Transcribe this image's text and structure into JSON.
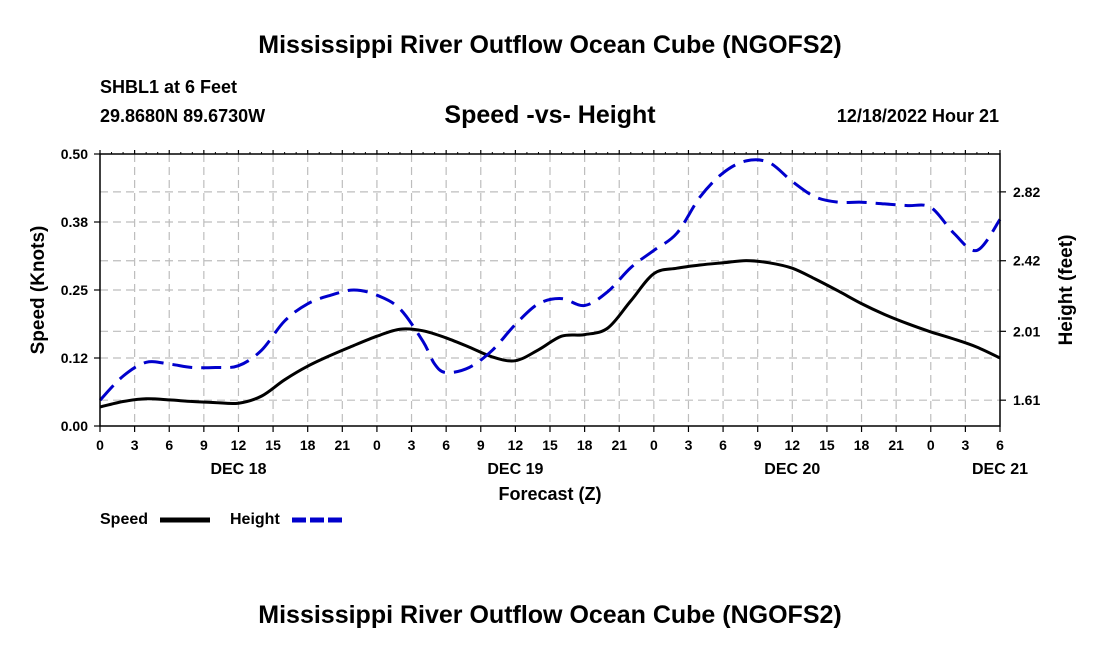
{
  "page_title": "Mississippi River Outflow Ocean Cube (NGOFS2)",
  "footer_title": "Mississippi River Outflow Ocean Cube (NGOFS2)",
  "station": {
    "name_depth": "SHBL1 at 6 Feet",
    "coords": "29.8680N  89.6730W",
    "datetime": "12/18/2022 Hour 21"
  },
  "chart_data": {
    "type": "line",
    "title": "Speed -vs- Height",
    "xlabel": "Forecast (Z)",
    "ylabel_left": "Speed (Knots)",
    "ylabel_right": "Height (feet)",
    "x_unit": "hours since 12/18 00Z",
    "xlim": [
      0,
      78
    ],
    "ylim_left": [
      0,
      0.5
    ],
    "ylim_right": [
      1.46,
      3.04
    ],
    "y_ticks_left": [
      "0.00",
      "0.12",
      "0.25",
      "0.38",
      "0.50"
    ],
    "y_ticks_left_values": [
      0,
      0.125,
      0.25,
      0.375,
      0.5
    ],
    "y_ticks_right": [
      "1.61",
      "2.01",
      "2.42",
      "2.82"
    ],
    "y_ticks_right_values": [
      1.61,
      2.01,
      2.42,
      2.82
    ],
    "x_tick_labels": [
      "0",
      "3",
      "6",
      "9",
      "12",
      "15",
      "18",
      "21",
      "0",
      "3",
      "6",
      "9",
      "12",
      "15",
      "18",
      "21",
      "0",
      "3",
      "6",
      "9",
      "12",
      "15",
      "18",
      "21",
      "0",
      "3",
      "6"
    ],
    "day_labels": [
      {
        "label": "DEC 18",
        "hour": 12
      },
      {
        "label": "DEC 19",
        "hour": 36
      },
      {
        "label": "DEC 20",
        "hour": 60
      },
      {
        "label": "DEC 21",
        "hour": 78
      }
    ],
    "grid": true,
    "series": [
      {
        "name": "Speed",
        "axis": "left",
        "color": "#000000",
        "dash": "solid",
        "x": [
          0,
          2,
          4,
          6,
          8,
          10,
          12,
          14,
          16,
          18,
          20,
          22,
          24,
          26,
          28,
          30,
          32,
          34,
          36,
          38,
          40,
          42,
          44,
          46,
          48,
          50,
          52,
          54,
          56,
          58,
          60,
          62,
          64,
          66,
          68,
          70,
          72,
          74,
          76,
          78
        ],
        "values": [
          0.035,
          0.045,
          0.05,
          0.048,
          0.045,
          0.043,
          0.042,
          0.055,
          0.085,
          0.11,
          0.13,
          0.148,
          0.165,
          0.178,
          0.175,
          0.162,
          0.145,
          0.127,
          0.12,
          0.14,
          0.165,
          0.168,
          0.18,
          0.23,
          0.28,
          0.29,
          0.296,
          0.3,
          0.304,
          0.3,
          0.29,
          0.27,
          0.248,
          0.225,
          0.205,
          0.188,
          0.173,
          0.16,
          0.145,
          0.125
        ]
      },
      {
        "name": "Height",
        "axis": "right",
        "color": "#0000cc",
        "dash": "dashed",
        "x": [
          0,
          2,
          4,
          6,
          8,
          10,
          12,
          14,
          16,
          18,
          20,
          22,
          24,
          26,
          28,
          29,
          30,
          32,
          34,
          36,
          38,
          40,
          42,
          44,
          46,
          48,
          50,
          52,
          54,
          56,
          58,
          60,
          62,
          64,
          66,
          68,
          70,
          72,
          74,
          76,
          78
        ],
        "values": [
          1.61,
          1.75,
          1.83,
          1.82,
          1.8,
          1.8,
          1.81,
          1.9,
          2.07,
          2.17,
          2.22,
          2.25,
          2.22,
          2.14,
          1.95,
          1.82,
          1.77,
          1.8,
          1.9,
          2.05,
          2.17,
          2.2,
          2.16,
          2.24,
          2.38,
          2.48,
          2.58,
          2.79,
          2.93,
          3.0,
          2.99,
          2.88,
          2.79,
          2.76,
          2.76,
          2.75,
          2.74,
          2.73,
          2.58,
          2.48,
          2.66
        ]
      }
    ],
    "legend": [
      "Speed",
      "Height"
    ]
  }
}
